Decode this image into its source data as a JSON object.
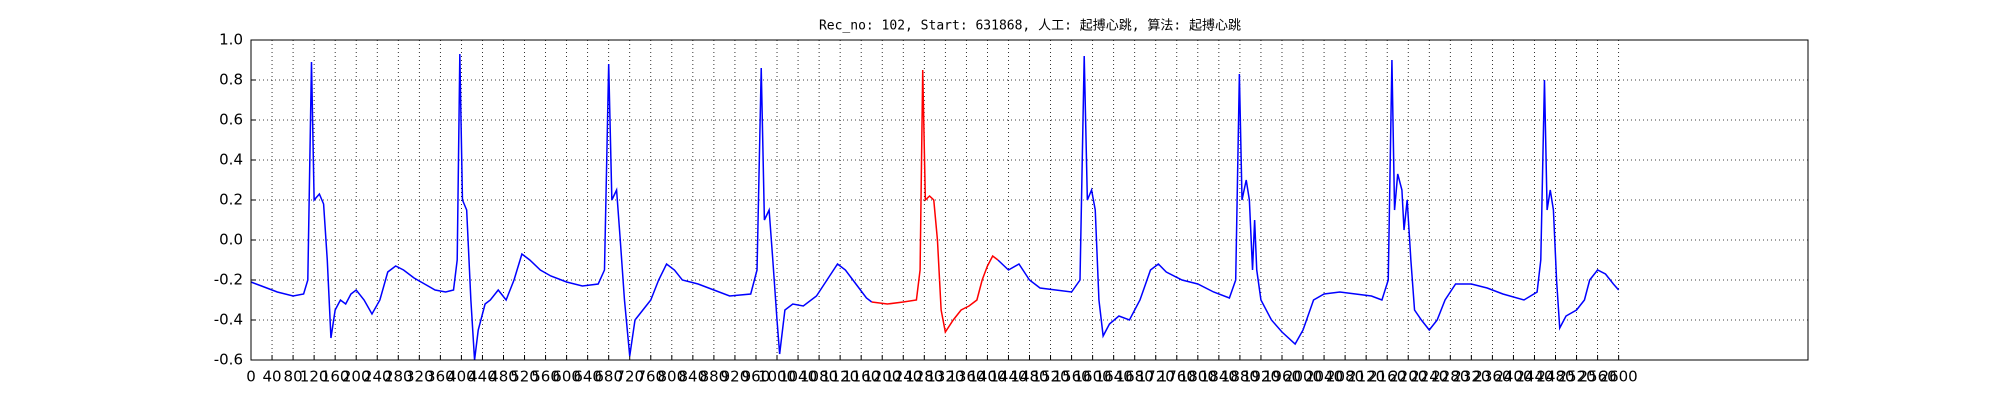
{
  "chart_data": {
    "type": "line",
    "title": "Rec_no: 102, Start: 631868, 人工: 起搏心跳, 算法: 起搏心跳",
    "series": [
      {
        "color": "#0000ff",
        "x": [
          0,
          20,
          50,
          80,
          100,
          108,
          115,
          120,
          130,
          138,
          145,
          152,
          160,
          170,
          180,
          190,
          200,
          215,
          230,
          245,
          260,
          275,
          290,
          310,
          330,
          350,
          370,
          385,
          392,
          397,
          402,
          410,
          418,
          425,
          432,
          445,
          455,
          470,
          485,
          500,
          515,
          530,
          550,
          570,
          600,
          630,
          660,
          672,
          680,
          686,
          695,
          702,
          710,
          720,
          730,
          745,
          760,
          775,
          790,
          805,
          820,
          850,
          880,
          910,
          950,
          962,
          970,
          976,
          985,
          992,
          1000,
          1005,
          1015,
          1030,
          1050,
          1075,
          1100,
          1115,
          1130,
          1150,
          1170,
          1180,
          1300,
          1420,
          1440,
          1460,
          1480,
          1500,
          1530,
          1560,
          1576,
          1584,
          1590,
          1598,
          1605,
          1612,
          1620,
          1632,
          1650,
          1670,
          1690,
          1710,
          1725,
          1740,
          1770,
          1800,
          1830,
          1860,
          1872,
          1879,
          1884,
          1892,
          1898,
          1904,
          1908,
          1912,
          1920,
          1940,
          1960,
          1985,
          2000,
          2020,
          2040,
          2070,
          2100,
          2130,
          2150,
          2162,
          2169,
          2174,
          2180,
          2188,
          2192,
          2198,
          2205,
          2212,
          2225,
          2240,
          2255,
          2270,
          2290,
          2320,
          2350,
          2380,
          2420,
          2445,
          2452,
          2459,
          2464,
          2470,
          2476,
          2482,
          2488,
          2500,
          2520,
          2535,
          2545,
          2560,
          2575,
          2590,
          2600
        ],
        "values": [
          -0.21,
          -0.23,
          -0.26,
          -0.28,
          -0.27,
          -0.2,
          0.89,
          0.2,
          0.23,
          0.18,
          -0.1,
          -0.49,
          -0.35,
          -0.3,
          -0.32,
          -0.27,
          -0.25,
          -0.3,
          -0.37,
          -0.3,
          -0.16,
          -0.13,
          -0.15,
          -0.19,
          -0.22,
          -0.25,
          -0.26,
          -0.25,
          -0.1,
          0.93,
          0.2,
          0.15,
          -0.3,
          -0.6,
          -0.45,
          -0.32,
          -0.3,
          -0.25,
          -0.3,
          -0.2,
          -0.07,
          -0.1,
          -0.15,
          -0.18,
          -0.21,
          -0.23,
          -0.22,
          -0.15,
          0.88,
          0.2,
          0.25,
          0.0,
          -0.3,
          -0.58,
          -0.4,
          -0.35,
          -0.3,
          -0.2,
          -0.12,
          -0.15,
          -0.2,
          -0.22,
          -0.25,
          -0.28,
          -0.27,
          -0.15,
          0.86,
          0.1,
          0.15,
          -0.1,
          -0.4,
          -0.57,
          -0.35,
          -0.32,
          -0.33,
          -0.28,
          -0.18,
          -0.12,
          -0.15,
          -0.22,
          -0.29,
          -0.31,
          null,
          -0.1,
          -0.15,
          -0.12,
          -0.2,
          -0.24,
          -0.25,
          -0.26,
          -0.2,
          0.92,
          0.2,
          0.25,
          0.15,
          -0.3,
          -0.48,
          -0.42,
          -0.38,
          -0.4,
          -0.3,
          -0.15,
          -0.12,
          -0.16,
          -0.2,
          -0.22,
          -0.26,
          -0.29,
          -0.2,
          0.83,
          0.2,
          0.3,
          0.2,
          -0.15,
          0.1,
          -0.15,
          -0.3,
          -0.4,
          -0.46,
          -0.52,
          -0.45,
          -0.3,
          -0.27,
          -0.26,
          -0.27,
          -0.28,
          -0.3,
          -0.2,
          0.9,
          0.15,
          0.33,
          0.25,
          0.05,
          0.2,
          -0.1,
          -0.35,
          -0.4,
          -0.45,
          -0.4,
          -0.3,
          -0.22,
          -0.22,
          -0.24,
          -0.27,
          -0.3,
          -0.26,
          -0.1,
          0.8,
          0.15,
          0.25,
          0.15,
          -0.2,
          -0.44,
          -0.38,
          -0.35,
          -0.3,
          -0.2,
          -0.15,
          -0.17,
          -0.22,
          -0.25
        ]
      },
      {
        "color": "#ff0000",
        "x": [
          1180,
          1210,
          1240,
          1265,
          1272,
          1277,
          1282,
          1290,
          1298,
          1305,
          1312,
          1320,
          1335,
          1350,
          1365,
          1380,
          1390,
          1400,
          1410,
          1420
        ],
        "values": [
          -0.31,
          -0.32,
          -0.31,
          -0.3,
          -0.15,
          0.85,
          0.2,
          0.22,
          0.2,
          0.0,
          -0.35,
          -0.46,
          -0.4,
          -0.35,
          -0.33,
          -0.3,
          -0.2,
          -0.13,
          -0.08,
          -0.1
        ]
      }
    ],
    "xlim": [
      0,
      2960
    ],
    "ylim": [
      -0.6,
      1.0
    ],
    "xticks": [
      0,
      40,
      80,
      120,
      160,
      200,
      240,
      280,
      320,
      360,
      400,
      440,
      480,
      520,
      560,
      600,
      640,
      680,
      720,
      760,
      800,
      840,
      880,
      920,
      960,
      1000,
      1040,
      1080,
      1120,
      1160,
      1200,
      1240,
      1280,
      1320,
      1360,
      1400,
      1440,
      1480,
      1520,
      1560,
      1600,
      1640,
      1680,
      1720,
      1760,
      1800,
      1840,
      1880,
      1920,
      1960,
      2000,
      2040,
      2080,
      2120,
      2160,
      2200,
      2240,
      2280,
      2320,
      2360,
      2400,
      2440,
      2480,
      2520,
      2560,
      2600
    ],
    "yticks": [
      -0.6,
      -0.4,
      -0.2,
      {
        "value": 0.0,
        "label": "0.0"
      },
      0.2,
      0.4,
      0.6,
      0.8,
      {
        "value": 1.0,
        "label": "1.0"
      }
    ],
    "grid": true
  }
}
